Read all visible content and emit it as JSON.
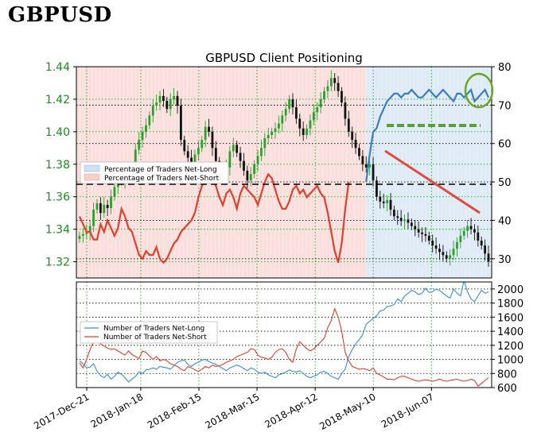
{
  "page_heading": "GBPUSD",
  "colors": {
    "net_long": "#3a7dc0",
    "net_short": "#e0402e",
    "price_up": "#2ca02c",
    "price_down": "#111111",
    "long_bg": "#e3edf7",
    "short_bg": "#fbe3e1",
    "annotation_red": "#e24a3b",
    "annotation_green": "#6aa621",
    "support_green": "#5a9e3a"
  },
  "chart_data": [
    {
      "type": "line",
      "title": "GBPUSD Client Positioning",
      "left_axis": {
        "ticks": [
          "1.44",
          "1.42",
          "1.40",
          "1.38",
          "1.36",
          "1.34",
          "1.32"
        ],
        "ylim": [
          1.31,
          1.44
        ]
      },
      "right_axis": {
        "ticks": [
          "80",
          "70",
          "60",
          "50",
          "40",
          "30"
        ],
        "ylim": [
          25,
          80
        ]
      },
      "x_ticks": [
        "2017-Dec-21",
        "2018-Jan-18",
        "2018-Feb-15",
        "2018-Mar-15",
        "2018-Apr-12",
        "2018-May-10",
        "2018-Jun-07"
      ],
      "legend": [
        "Percentage of Traders Net-Long",
        "Percentage of Traders Net-Short"
      ],
      "legend_position": "center-left",
      "grid": true,
      "price_close": [
        1.336,
        1.337,
        1.338,
        1.342,
        1.352,
        1.356,
        1.35,
        1.355,
        1.353,
        1.36,
        1.366,
        1.372,
        1.37,
        1.372,
        1.374,
        1.378,
        1.389,
        1.395,
        1.4,
        1.404,
        1.41,
        1.416,
        1.418,
        1.422,
        1.419,
        1.414,
        1.42,
        1.422,
        1.416,
        1.395,
        1.388,
        1.384,
        1.38,
        1.386,
        1.39,
        1.395,
        1.403,
        1.4,
        1.39,
        1.382,
        1.376,
        1.372,
        1.378,
        1.388,
        1.392,
        1.387,
        1.382,
        1.376,
        1.37,
        1.374,
        1.38,
        1.385,
        1.39,
        1.396,
        1.398,
        1.4,
        1.402,
        1.405,
        1.41,
        1.414,
        1.42,
        1.415,
        1.408,
        1.402,
        1.398,
        1.402,
        1.407,
        1.412,
        1.415,
        1.42,
        1.425,
        1.428,
        1.433,
        1.43,
        1.425,
        1.418,
        1.408,
        1.4,
        1.395,
        1.39,
        1.385,
        1.38,
        1.378,
        1.38,
        1.37,
        1.36,
        1.357,
        1.356,
        1.358,
        1.352,
        1.348,
        1.347,
        1.345,
        1.346,
        1.344,
        1.342,
        1.34,
        1.338,
        1.337,
        1.336,
        1.333,
        1.33,
        1.328,
        1.326,
        1.324,
        1.322,
        1.324,
        1.328,
        1.332,
        1.336,
        1.339,
        1.342,
        1.34,
        1.338,
        1.333,
        1.33,
        1.325,
        1.32
      ],
      "net_long_pct": [
        null,
        null,
        null,
        null,
        null,
        null,
        null,
        null,
        null,
        null,
        null,
        null,
        null,
        null,
        null,
        null,
        null,
        null,
        null,
        null,
        null,
        null,
        null,
        null,
        null,
        null,
        null,
        null,
        null,
        null,
        null,
        null,
        null,
        null,
        null,
        null,
        null,
        null,
        null,
        null,
        null,
        null,
        null,
        null,
        null,
        null,
        null,
        null,
        null,
        null,
        null,
        null,
        null,
        null,
        null,
        null,
        null,
        null,
        null,
        null,
        null,
        null,
        null,
        null,
        null,
        null,
        null,
        null,
        null,
        null,
        null,
        null,
        null,
        null,
        null,
        null,
        null,
        null,
        null,
        null,
        null,
        null,
        50,
        57,
        63,
        64,
        67,
        69,
        71,
        72,
        73,
        73,
        72,
        73,
        73,
        74,
        73,
        72,
        72,
        73,
        74,
        73,
        72,
        73,
        74,
        73,
        72,
        71,
        73,
        73,
        72,
        73,
        74,
        71,
        72,
        73,
        74,
        72
      ],
      "net_short_pct": [
        41,
        39,
        37,
        37,
        35,
        35,
        39,
        37,
        40,
        38,
        36,
        38,
        43,
        41,
        38,
        37,
        34,
        31,
        30,
        32,
        31,
        31,
        33,
        30,
        29,
        30,
        32,
        34,
        35,
        37,
        38,
        39,
        40,
        42,
        46,
        49,
        50,
        52,
        51,
        49,
        46,
        44,
        47,
        48,
        46,
        43,
        47,
        49,
        48,
        47,
        46,
        44,
        47,
        50,
        52,
        51,
        48,
        45,
        43,
        43,
        45,
        48,
        49,
        47,
        48,
        46,
        47,
        48,
        49,
        47,
        46,
        42,
        37,
        32,
        29,
        34,
        43,
        50,
        null,
        null,
        null,
        null,
        null,
        null,
        null,
        null,
        null,
        null,
        null,
        null,
        null,
        null,
        null,
        null,
        null,
        null,
        null,
        null,
        null,
        null,
        null,
        null,
        null,
        null,
        null,
        null,
        null,
        null,
        null,
        null,
        null,
        null,
        null,
        null,
        null,
        null,
        null,
        null
      ]
    },
    {
      "type": "line",
      "title": "",
      "right_axis": {
        "ticks": [
          "2000",
          "1800",
          "1600",
          "1400",
          "1200",
          "1000",
          "800",
          "600"
        ],
        "ylim": [
          600,
          2100
        ]
      },
      "legend": [
        "Number of Traders Net-Long",
        "Number of Traders Net-Short"
      ],
      "legend_position": "center-left",
      "grid": true,
      "series": [
        {
          "name": "Number of Traders Net-Long",
          "values": [
            980,
            940,
            880,
            890,
            940,
            830,
            770,
            740,
            790,
            720,
            760,
            820,
            790,
            740,
            680,
            720,
            760,
            820,
            800,
            850,
            860,
            880,
            860,
            900,
            890,
            880,
            860,
            910,
            960,
            980,
            990,
            930,
            900,
            940,
            960,
            990,
            1000,
            970,
            950,
            930,
            900,
            870,
            840,
            880,
            900,
            920,
            900,
            870,
            840,
            880,
            860,
            820,
            800,
            820,
            780,
            760,
            740,
            780,
            800,
            820,
            850,
            830,
            820,
            840,
            800,
            760,
            740,
            760,
            780,
            820,
            830,
            800,
            760,
            740,
            720,
            800,
            860,
            1040,
            1140,
            1220,
            1280,
            1350,
            1500,
            1540,
            1580,
            1620,
            1690,
            1700,
            1750,
            1760,
            1780,
            1860,
            1820,
            1900,
            1940,
            1980,
            1960,
            1920,
            1940,
            2010,
            1950,
            1960,
            2000,
            1980,
            1940,
            1900,
            1870,
            2000,
            1940,
            1900,
            2120,
            1960,
            1860,
            1820,
            1900,
            1980,
            1940,
            1960
          ]
        },
        {
          "name": "Number of Traders Net-Short",
          "values": [
            950,
            880,
            1000,
            1140,
            1250,
            1320,
            1220,
            1190,
            1160,
            1140,
            1150,
            1120,
            1090,
            1060,
            1120,
            1070,
            1040,
            1010,
            1120,
            1100,
            1050,
            1000,
            1040,
            980,
            1000,
            980,
            940,
            920,
            900,
            860,
            840,
            900,
            880,
            850,
            830,
            860,
            900,
            880,
            920,
            900,
            910,
            930,
            960,
            980,
            1000,
            1040,
            1060,
            1080,
            1100,
            1150,
            1140,
            1060,
            1030,
            1020,
            1000,
            1030,
            1100,
            1140,
            1150,
            1100,
            1000,
            960,
            1150,
            1250,
            1200,
            1150,
            1120,
            1150,
            1200,
            1250,
            1300,
            1450,
            1550,
            1720,
            1600,
            1400,
            1100,
            980,
            900,
            880,
            860,
            870,
            860,
            840,
            880,
            800,
            780,
            750,
            720,
            720,
            710,
            740,
            760,
            760,
            740,
            720,
            700,
            690,
            700,
            710,
            700,
            690,
            700,
            720,
            700,
            690,
            700,
            710,
            720,
            700,
            690,
            700,
            720,
            700,
            620,
            660,
            700,
            740
          ]
        }
      ]
    }
  ]
}
